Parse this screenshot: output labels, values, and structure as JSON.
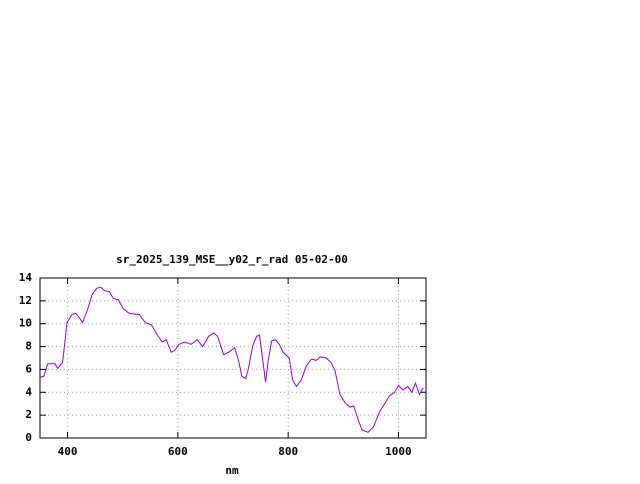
{
  "chart_data": {
    "type": "line",
    "title": "sr_2025_139_MSE__y02_r_rad 05-02-00",
    "x_label": "nm",
    "x": [
      350,
      357,
      364,
      377,
      382,
      391,
      399,
      408,
      415,
      422,
      427,
      436,
      445,
      453,
      460,
      467,
      476,
      483,
      492,
      501,
      512,
      530,
      541,
      552,
      563,
      572,
      579,
      588,
      595,
      602,
      613,
      624,
      635,
      645,
      656,
      665,
      672,
      683,
      692,
      703,
      710,
      716,
      723,
      728,
      736,
      743,
      748,
      754,
      759,
      764,
      770,
      777,
      784,
      791,
      802,
      808,
      815,
      824,
      833,
      842,
      851,
      858,
      869,
      878,
      885,
      894,
      903,
      912,
      919,
      927,
      934,
      945,
      955,
      966,
      975,
      984,
      993,
      1000,
      1008,
      1017,
      1024,
      1031,
      1038,
      1045
    ],
    "series": [
      {
        "color": "#9400d3",
        "values": [
          5.3,
          5.4,
          6.5,
          6.5,
          6.1,
          6.6,
          10.1,
          10.8,
          10.9,
          10.5,
          10.1,
          11.2,
          12.6,
          13.1,
          13.2,
          12.9,
          12.8,
          12.2,
          12.1,
          11.3,
          10.9,
          10.8,
          10.1,
          9.9,
          9.0,
          8.4,
          8.6,
          7.5,
          7.7,
          8.2,
          8.4,
          8.2,
          8.6,
          8.0,
          8.9,
          9.2,
          8.9,
          7.3,
          7.5,
          7.9,
          6.8,
          5.4,
          5.2,
          6.1,
          8.1,
          8.9,
          9.0,
          6.8,
          4.9,
          6.8,
          8.5,
          8.6,
          8.2,
          7.5,
          7.0,
          5.1,
          4.5,
          5.1,
          6.3,
          6.9,
          6.8,
          7.1,
          7.0,
          6.6,
          5.9,
          3.8,
          3.1,
          2.7,
          2.8,
          1.6,
          0.7,
          0.5,
          1.0,
          2.3,
          3.0,
          3.7,
          4.0,
          4.6,
          4.2,
          4.5,
          4.0,
          4.8,
          3.8,
          4.4
        ]
      }
    ],
    "xlim": [
      350,
      1050
    ],
    "ylim": [
      0,
      14
    ],
    "xticks": [
      400,
      600,
      800,
      1000
    ],
    "yticks": [
      0,
      2,
      4,
      6,
      8,
      10,
      12,
      14
    ],
    "grid": true
  }
}
